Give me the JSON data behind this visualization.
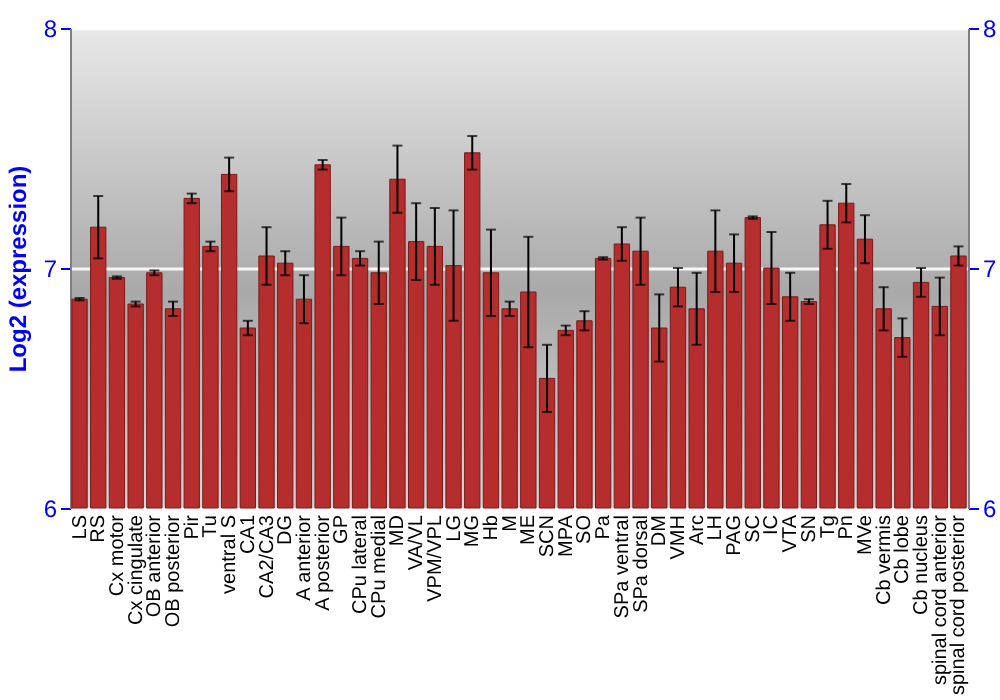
{
  "chart_data": {
    "type": "bar",
    "ylabel": "Log2 (expression)",
    "categories": [
      "LS",
      "RS",
      "Cx motor",
      "Cx cingulate",
      "OB anterior",
      "OB posterior",
      "Pir",
      "Tu",
      "ventral S",
      "CA1",
      "CA2/CA3",
      "DG",
      "A anterior",
      "A posterior",
      "GP",
      "CPu lateral",
      "CPu medial",
      "MD",
      "VA/VL",
      "VPM/VPL",
      "LG",
      "MG",
      "Hb",
      "M",
      "ME",
      "SCN",
      "MPA",
      "SO",
      "Pa",
      "SPa ventral",
      "SPa dorsal",
      "DM",
      "VMH",
      "Arc",
      "LH",
      "PAG",
      "SC",
      "IC",
      "VTA",
      "SN",
      "Tg",
      "Pn",
      "MVe",
      "Cb vermis",
      "Cb lobe",
      "Cb nucleus",
      "spinal cord anterior",
      "spinal cord posterior"
    ],
    "values": [
      6.87,
      7.17,
      6.96,
      6.85,
      6.98,
      6.83,
      7.29,
      7.09,
      7.39,
      6.75,
      7.05,
      7.02,
      6.87,
      7.43,
      7.09,
      7.04,
      6.98,
      7.37,
      7.11,
      7.09,
      7.01,
      7.48,
      6.98,
      6.83,
      6.9,
      6.54,
      6.74,
      6.78,
      7.04,
      7.1,
      7.07,
      6.75,
      6.92,
      6.83,
      7.07,
      7.02,
      7.21,
      7.0,
      6.88,
      6.86,
      7.18,
      7.27,
      7.12,
      6.83,
      6.71,
      6.94,
      6.84,
      7.05
    ],
    "errors": [
      0.005,
      0.13,
      0.005,
      0.01,
      0.01,
      0.03,
      0.02,
      0.02,
      0.07,
      0.03,
      0.12,
      0.05,
      0.1,
      0.02,
      0.12,
      0.03,
      0.13,
      0.14,
      0.16,
      0.16,
      0.23,
      0.07,
      0.18,
      0.03,
      0.23,
      0.14,
      0.02,
      0.04,
      0.005,
      0.07,
      0.14,
      0.14,
      0.08,
      0.15,
      0.17,
      0.12,
      0.005,
      0.15,
      0.1,
      0.01,
      0.1,
      0.08,
      0.1,
      0.09,
      0.08,
      0.06,
      0.12,
      0.04
    ],
    "color": "#b52d2d",
    "ylim": [
      6,
      8
    ],
    "yticks": [
      6,
      7,
      8
    ],
    "y2lim": [
      6,
      8
    ],
    "y2ticks": [
      6,
      7,
      8
    ],
    "grid": "y"
  }
}
